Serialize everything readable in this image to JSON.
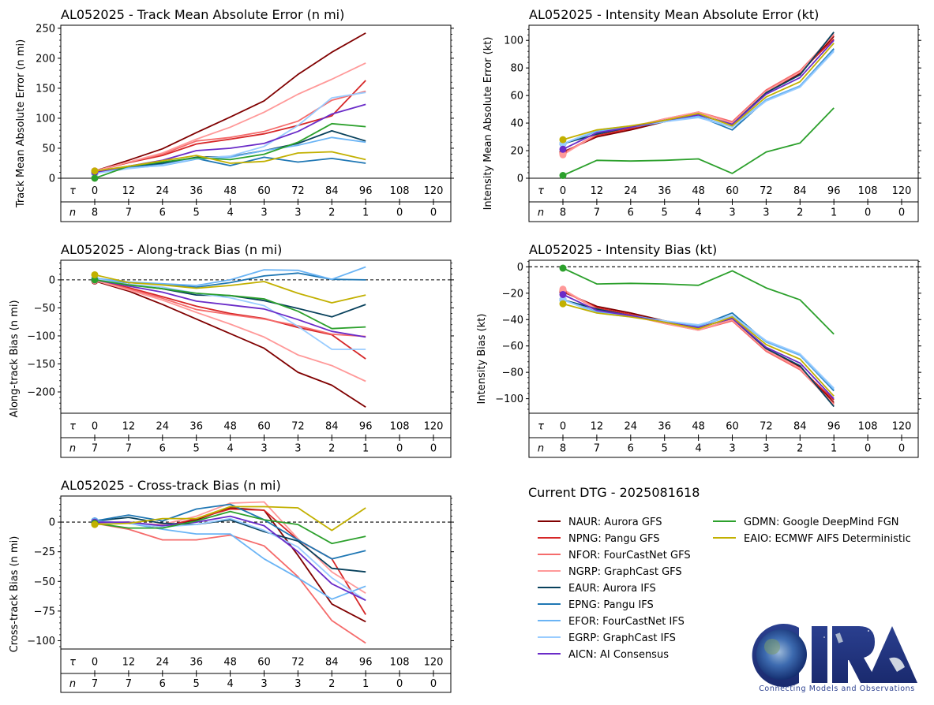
{
  "header": {
    "dtg_label": "Current DTG - 2025081618"
  },
  "logo": {
    "text": "CIRA",
    "tagline": "Connecting Models and Observations"
  },
  "models": [
    {
      "id": "NAUR",
      "label": "NAUR: Aurora GFS",
      "color": "#800000"
    },
    {
      "id": "NPNG",
      "label": "NPNG: Pangu GFS",
      "color": "#d62728"
    },
    {
      "id": "NFOR",
      "label": "NFOR: FourCastNet GFS",
      "color": "#f56b6b"
    },
    {
      "id": "NGRP",
      "label": "NGRP: GraphCast GFS",
      "color": "#ff9999"
    },
    {
      "id": "EAUR",
      "label": "EAUR: Aurora IFS",
      "color": "#08415c"
    },
    {
      "id": "EPNG",
      "label": "EPNG: Pangu IFS",
      "color": "#1f77b4"
    },
    {
      "id": "EFOR",
      "label": "EFOR: FourCastNet IFS",
      "color": "#6ab4f5"
    },
    {
      "id": "EGRP",
      "label": "EGRP: GraphCast IFS",
      "color": "#99ccff"
    },
    {
      "id": "AICN",
      "label": "AICN: AI Consensus",
      "color": "#6a2bc8"
    },
    {
      "id": "GDMN",
      "label": "GDMN: Google DeepMind FGN",
      "color": "#2ca02c"
    },
    {
      "id": "EAIO",
      "label": "EAIO: ECMWF AIFS Deterministic",
      "color": "#c2b000"
    }
  ],
  "chart_data": [
    {
      "id": "track_mae",
      "type": "line",
      "title": "AL052025 - Track Mean Absolute Error (n mi)",
      "ylabel": "Track Mean Absolute Error (n mi)",
      "ylim": [
        0,
        255
      ],
      "yticks": [
        0,
        50,
        100,
        150,
        200,
        250
      ],
      "zero_line": false,
      "x": [
        0,
        12,
        24,
        36,
        48,
        60,
        72,
        84,
        96,
        108,
        120
      ],
      "tau_label": "τ",
      "n_label": "n",
      "n": [
        8,
        7,
        6,
        5,
        4,
        3,
        3,
        2,
        1,
        0,
        0
      ],
      "series": [
        {
          "id": "NAUR",
          "values": [
            12,
            30,
            49,
            76,
            102,
            129,
            173,
            210,
            242
          ]
        },
        {
          "id": "NPNG",
          "values": [
            12,
            26,
            38,
            57,
            65,
            74,
            88,
            104,
            163
          ]
        },
        {
          "id": "NFOR",
          "values": [
            12,
            27,
            40,
            62,
            68,
            78,
            95,
            130,
            145
          ]
        },
        {
          "id": "NGRP",
          "values": [
            12,
            27,
            42,
            65,
            85,
            110,
            140,
            165,
            192
          ]
        },
        {
          "id": "EAUR",
          "values": [
            8,
            20,
            25,
            35,
            36,
            46,
            58,
            79,
            62
          ]
        },
        {
          "id": "EPNG",
          "values": [
            8,
            18,
            23,
            33,
            21,
            35,
            27,
            33,
            25
          ]
        },
        {
          "id": "EFOR",
          "values": [
            8,
            17,
            21,
            32,
            35,
            46,
            55,
            68,
            60
          ]
        },
        {
          "id": "EGRP",
          "values": [
            8,
            16,
            22,
            33,
            37,
            53,
            88,
            134,
            143
          ]
        },
        {
          "id": "AICN",
          "values": [
            10,
            20,
            30,
            46,
            50,
            58,
            78,
            107,
            123
          ]
        },
        {
          "id": "GDMN",
          "values": [
            0,
            20,
            27,
            34,
            31,
            40,
            60,
            91,
            86
          ]
        },
        {
          "id": "EAIO",
          "values": [
            12,
            20,
            29,
            38,
            25,
            28,
            42,
            44,
            31
          ]
        }
      ]
    },
    {
      "id": "intensity_mae",
      "type": "line",
      "title": "AL052025 - Intensity Mean Absolute Error (kt)",
      "ylabel": "Intensity Mean Absolute Error (kt)",
      "ylim": [
        0,
        111
      ],
      "yticks": [
        0,
        20,
        40,
        60,
        80,
        100
      ],
      "zero_line": false,
      "x": [
        0,
        12,
        24,
        36,
        48,
        60,
        72,
        84,
        96,
        108,
        120
      ],
      "tau_label": "τ",
      "n_label": "n",
      "n": [
        8,
        7,
        6,
        5,
        4,
        3,
        3,
        2,
        1,
        0,
        0
      ],
      "series": [
        {
          "id": "NAUR",
          "values": [
            19,
            30,
            35,
            41,
            46,
            39,
            62,
            76,
            103
          ]
        },
        {
          "id": "NPNG",
          "values": [
            18,
            31,
            36,
            42,
            48,
            40,
            63,
            77,
            101
          ]
        },
        {
          "id": "NFOR",
          "values": [
            18,
            32,
            37,
            43,
            48,
            41,
            64,
            78,
            104
          ]
        },
        {
          "id": "NGRP",
          "values": [
            17,
            32,
            37,
            43,
            48,
            40,
            63,
            77,
            105
          ]
        },
        {
          "id": "EAUR",
          "values": [
            25,
            32,
            37,
            42,
            46,
            39,
            62,
            75,
            106
          ]
        },
        {
          "id": "EPNG",
          "values": [
            25,
            34,
            37,
            41,
            45,
            35,
            57,
            67,
            94
          ]
        },
        {
          "id": "EFOR",
          "values": [
            25,
            34,
            37,
            41,
            45,
            37,
            57,
            67,
            93
          ]
        },
        {
          "id": "EGRP",
          "values": [
            25,
            35,
            38,
            41,
            44,
            37,
            56,
            66,
            92
          ]
        },
        {
          "id": "AICN",
          "values": [
            21,
            33,
            37,
            42,
            46,
            39,
            61,
            73,
            100
          ]
        },
        {
          "id": "GDMN",
          "values": [
            2,
            13,
            12.5,
            13,
            14,
            3.5,
            19,
            25.5,
            51
          ]
        },
        {
          "id": "EAIO",
          "values": [
            28,
            35,
            38,
            42,
            47,
            38,
            59,
            70,
            98
          ]
        }
      ]
    },
    {
      "id": "along_track_bias",
      "type": "line",
      "title": "AL052025 - Along-track Bias (n mi)",
      "ylabel": "Along-track Bias (n mi)",
      "ylim": [
        -238,
        35
      ],
      "yticks": [
        -200,
        -150,
        -100,
        -50,
        0
      ],
      "zero_line": true,
      "x": [
        0,
        12,
        24,
        36,
        48,
        60,
        72,
        84,
        96,
        108,
        120
      ],
      "tau_label": "τ",
      "n_label": "n",
      "n": [
        7,
        7,
        6,
        5,
        4,
        3,
        3,
        2,
        1,
        0,
        0
      ],
      "series": [
        {
          "id": "NAUR",
          "values": [
            -2,
            -20,
            -44,
            -70,
            -96,
            -122,
            -165,
            -188,
            -227
          ]
        },
        {
          "id": "NPNG",
          "values": [
            -1,
            -14,
            -30,
            -47,
            -60,
            -69,
            -85,
            -98,
            -141
          ]
        },
        {
          "id": "NFOR",
          "values": [
            -1,
            -16,
            -33,
            -53,
            -62,
            -70,
            -82,
            -97,
            -101
          ]
        },
        {
          "id": "NGRP",
          "values": [
            -1,
            -18,
            -36,
            -58,
            -79,
            -102,
            -134,
            -153,
            -181
          ]
        },
        {
          "id": "EAUR",
          "values": [
            1,
            -8,
            -16,
            -27,
            -28,
            -37,
            -51,
            -66,
            -44
          ]
        },
        {
          "id": "EPNG",
          "values": [
            2,
            -5,
            -8,
            -13,
            -5,
            7,
            12,
            1,
            0
          ]
        },
        {
          "id": "EFOR",
          "values": [
            3,
            -4,
            -7,
            -10,
            0,
            18,
            17,
            1,
            23
          ]
        },
        {
          "id": "EGRP",
          "values": [
            2,
            -8,
            -13,
            -24,
            -32,
            -46,
            -83,
            -124,
            -124
          ]
        },
        {
          "id": "AICN",
          "values": [
            0,
            -11,
            -22,
            -38,
            -45,
            -52,
            -71,
            -92,
            -102
          ]
        },
        {
          "id": "GDMN",
          "values": [
            0,
            -9,
            -16,
            -24,
            -28,
            -34,
            -56,
            -87,
            -84
          ]
        },
        {
          "id": "EAIO",
          "values": [
            9,
            -5,
            -9,
            -15,
            -10,
            -3,
            -24,
            -41,
            -27
          ]
        }
      ]
    },
    {
      "id": "intensity_bias",
      "type": "line",
      "title": "AL052025 - Intensity Bias (kt)",
      "ylabel": "Intensity Bias (kt)",
      "ylim": [
        -111,
        5
      ],
      "yticks": [
        -100,
        -80,
        -60,
        -40,
        -20,
        0
      ],
      "zero_line": true,
      "x": [
        0,
        12,
        24,
        36,
        48,
        60,
        72,
        84,
        96,
        108,
        120
      ],
      "tau_label": "τ",
      "n_label": "n",
      "n": [
        8,
        7,
        6,
        5,
        4,
        3,
        3,
        2,
        1,
        0,
        0
      ],
      "series": [
        {
          "id": "NAUR",
          "values": [
            -19,
            -30,
            -35,
            -41,
            -46,
            -39,
            -62,
            -76,
            -103
          ]
        },
        {
          "id": "NPNG",
          "values": [
            -18,
            -31,
            -36,
            -42,
            -48,
            -40,
            -63,
            -77,
            -101
          ]
        },
        {
          "id": "NFOR",
          "values": [
            -18,
            -32,
            -37,
            -43,
            -48,
            -41,
            -64,
            -78,
            -104
          ]
        },
        {
          "id": "NGRP",
          "values": [
            -17,
            -32,
            -37,
            -43,
            -48,
            -40,
            -63,
            -77,
            -105
          ]
        },
        {
          "id": "EAUR",
          "values": [
            -25,
            -32,
            -37,
            -42,
            -46,
            -39,
            -62,
            -75,
            -106
          ]
        },
        {
          "id": "EPNG",
          "values": [
            -25,
            -34,
            -37,
            -41,
            -45,
            -35,
            -57,
            -67,
            -94
          ]
        },
        {
          "id": "EFOR",
          "values": [
            -25,
            -34,
            -37,
            -41,
            -45,
            -37,
            -57,
            -67,
            -93
          ]
        },
        {
          "id": "EGRP",
          "values": [
            -25,
            -35,
            -38,
            -41,
            -44,
            -37,
            -56,
            -66,
            -92
          ]
        },
        {
          "id": "AICN",
          "values": [
            -21,
            -33,
            -37,
            -42,
            -46,
            -39,
            -61,
            -73,
            -100
          ]
        },
        {
          "id": "GDMN",
          "values": [
            -1,
            -13,
            -12.5,
            -13,
            -14,
            -3,
            -16,
            -25,
            -51
          ]
        },
        {
          "id": "EAIO",
          "values": [
            -28,
            -35,
            -38,
            -42,
            -47,
            -38,
            -59,
            -70,
            -98
          ]
        }
      ]
    },
    {
      "id": "cross_track_bias",
      "type": "line",
      "title": "AL052025 - Cross-track Bias (n mi)",
      "ylabel": "Cross-track Bias (n mi)",
      "ylim": [
        -107,
        22
      ],
      "yticks": [
        -100,
        -75,
        -50,
        -25,
        0
      ],
      "zero_line": true,
      "x": [
        0,
        12,
        24,
        36,
        48,
        60,
        72,
        84,
        96,
        108,
        120
      ],
      "tau_label": "τ",
      "n_label": "n",
      "n": [
        7,
        7,
        6,
        5,
        4,
        3,
        3,
        2,
        1,
        0,
        0
      ],
      "series": [
        {
          "id": "NAUR",
          "values": [
            -1,
            -1,
            -4,
            2,
            12,
            10,
            -28,
            -69,
            -84
          ]
        },
        {
          "id": "NPNG",
          "values": [
            -1,
            0,
            -4,
            3,
            11,
            10,
            -15,
            -31,
            -78
          ]
        },
        {
          "id": "NFOR",
          "values": [
            -1,
            -6,
            -15,
            -15,
            -11,
            -20,
            -46,
            -83,
            -102
          ]
        },
        {
          "id": "NGRP",
          "values": [
            0,
            -1,
            -2,
            5,
            16,
            17,
            -14,
            -42,
            -60
          ]
        },
        {
          "id": "EAUR",
          "values": [
            1,
            4,
            -1,
            -2,
            2,
            -8,
            -16,
            -39,
            -42
          ]
        },
        {
          "id": "EPNG",
          "values": [
            1,
            6,
            1,
            11,
            15,
            2,
            -15,
            -31,
            -24
          ]
        },
        {
          "id": "EFOR",
          "values": [
            1,
            -1,
            -6,
            -10,
            -10,
            -31,
            -47,
            -65,
            -54
          ]
        },
        {
          "id": "EGRP",
          "values": [
            0,
            -1,
            -4,
            -2,
            3,
            -7,
            -21,
            -47,
            -66
          ]
        },
        {
          "id": "AICN",
          "values": [
            0,
            0,
            -3,
            0,
            5,
            -3,
            -25,
            -52,
            -66
          ]
        },
        {
          "id": "GDMN",
          "values": [
            -1,
            -5,
            -5,
            1,
            9,
            2,
            -2,
            -18,
            -12
          ]
        },
        {
          "id": "EAIO",
          "values": [
            -2,
            -1,
            3,
            3,
            13,
            13,
            12,
            -7,
            12
          ]
        }
      ]
    }
  ]
}
